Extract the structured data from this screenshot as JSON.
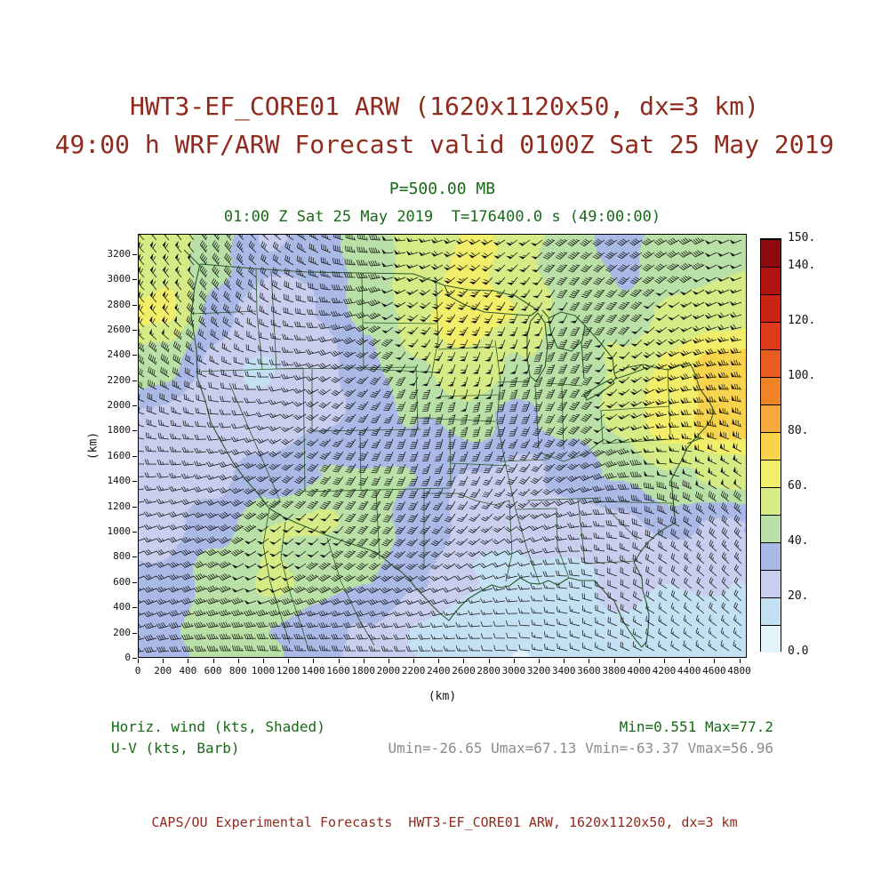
{
  "colors": {
    "title-red": "#8f2a1e",
    "annotation-green": "#176917",
    "annotation-gray": "#8c8c8c",
    "map-line-green": "#2b5a2b",
    "barb-black": "#141414"
  },
  "header": {
    "title_line1": "HWT3-EF_CORE01 ARW (1620x1120x50, dx=3 km)",
    "title_line2": "49:00 h WRF/ARW Forecast valid 0100Z Sat 25 May 2019",
    "level_label": "P=500.00 MB",
    "time_label": "01:00 Z Sat 25 May 2019  T=176400.0 s (49:00:00)"
  },
  "legend": {
    "field_label": "Horiz. wind (kts, Shaded)",
    "barb_label": "U-V (kts, Barb)",
    "minmax": "Min=0.551 Max=77.2",
    "uv_minmax": "Umin=-26.65 Umax=67.13 Vmin=-63.37 Vmax=56.96"
  },
  "footer": {
    "text": "CAPS/OU Experimental Forecasts  HWT3-EF_CORE01 ARW, 1620x1120x50, dx=3 km"
  },
  "chart_data": {
    "type": "heatmap",
    "title": "HWT3-EF_CORE01 ARW (1620x1120x50, dx=3 km)",
    "subtitle": "49:00 h WRF/ARW Forecast valid 0100Z Sat 25 May 2019",
    "field": "Horizontal wind speed (kts, shaded) with U-V wind barbs (kts) at P=500.00 MB",
    "valid_time": "01:00 Z Sat 25 May 2019",
    "forecast_seconds": 176400.0,
    "forecast_hour": "49:00:00",
    "xlabel": "(km)",
    "ylabel": "(km)",
    "xlim": [
      0,
      4860
    ],
    "ylim": [
      0,
      3360
    ],
    "x_ticks": [
      0,
      200,
      400,
      600,
      800,
      1000,
      1200,
      1400,
      1600,
      1800,
      2000,
      2200,
      2400,
      2600,
      2800,
      3000,
      3200,
      3400,
      3600,
      3800,
      4000,
      4200,
      4400,
      4600,
      4800
    ],
    "y_ticks": [
      0,
      200,
      400,
      600,
      800,
      1000,
      1200,
      1400,
      1600,
      1800,
      2000,
      2200,
      2400,
      2600,
      2800,
      3000,
      3200
    ],
    "colorbar": {
      "levels": [
        0,
        10,
        20,
        30,
        40,
        50,
        60,
        70,
        80,
        90,
        100,
        110,
        120,
        130,
        140,
        150
      ],
      "colors": [
        "#e2f3fa",
        "#c4e1f4",
        "#c9cdee",
        "#aab9e6",
        "#b9e0a6",
        "#d6ea85",
        "#f2ee6a",
        "#f8d44d",
        "#f6a93c",
        "#f08228",
        "#e95d20",
        "#de3b1b",
        "#cc2414",
        "#b01410",
        "#8c0a0b"
      ],
      "tick_values": [
        0,
        20,
        40,
        60,
        80,
        100,
        120,
        140,
        150
      ],
      "tick_labels": [
        "0.0",
        "20.",
        "40.",
        "60.",
        "80.",
        "100.",
        "120.",
        "140.",
        "150."
      ]
    },
    "stats": {
      "min": 0.551,
      "max": 77.2,
      "umin": -26.65,
      "umax": 67.13,
      "vmin": -63.37,
      "vmax": 56.96
    },
    "barb_units": "kts",
    "speed_grid_kts": {
      "comment": "Approximate shaded wind speed (kts) read from the plot on a coarse 12x8 grid; rows north to south, columns west to east",
      "nx": 12,
      "ny": 8,
      "values": [
        [
          58,
          44,
          30,
          34,
          44,
          55,
          62,
          55,
          44,
          38,
          42,
          48
        ],
        [
          62,
          36,
          24,
          30,
          42,
          58,
          66,
          58,
          48,
          44,
          52,
          58
        ],
        [
          44,
          24,
          20,
          26,
          36,
          50,
          58,
          48,
          44,
          52,
          64,
          74
        ],
        [
          28,
          20,
          22,
          28,
          34,
          40,
          44,
          38,
          42,
          54,
          66,
          76
        ],
        [
          22,
          26,
          34,
          40,
          42,
          38,
          30,
          28,
          34,
          42,
          50,
          54
        ],
        [
          26,
          36,
          48,
          52,
          46,
          38,
          26,
          22,
          24,
          28,
          32,
          30
        ],
        [
          32,
          44,
          52,
          46,
          40,
          32,
          20,
          16,
          18,
          22,
          20,
          22
        ],
        [
          38,
          46,
          42,
          34,
          28,
          20,
          13,
          11,
          15,
          18,
          14,
          16
        ]
      ]
    }
  }
}
